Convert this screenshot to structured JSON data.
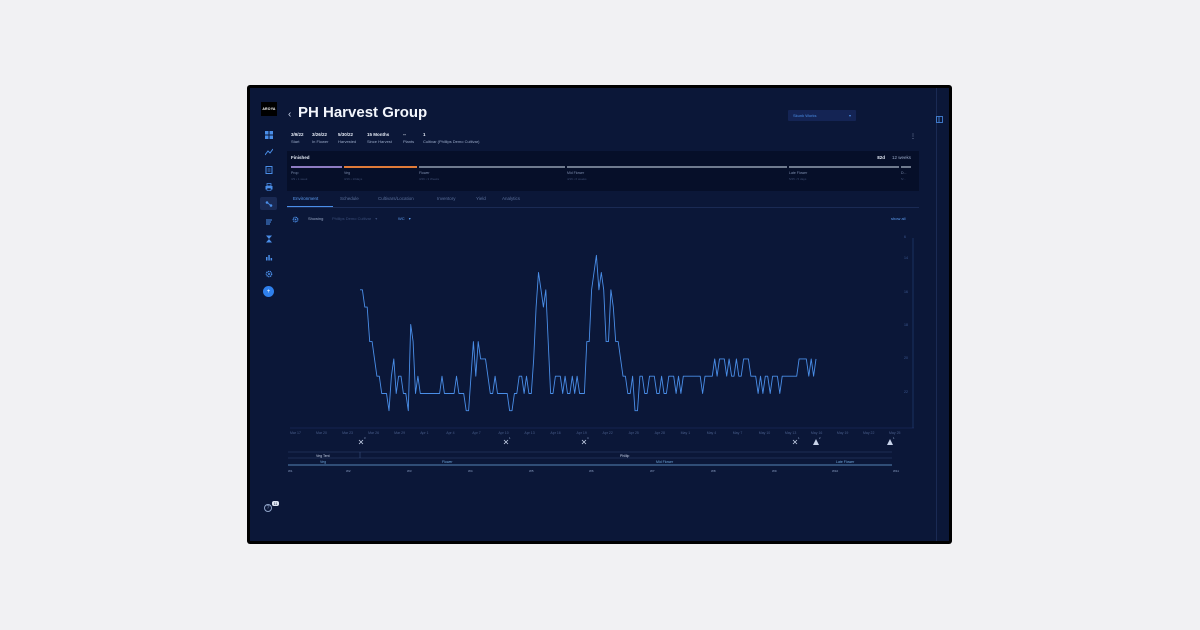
{
  "app": {
    "logo_text": "AROYA"
  },
  "sidebar": {
    "items": [
      {
        "icon": "dashboard-icon"
      },
      {
        "icon": "trend-icon"
      },
      {
        "icon": "clipboard-icon"
      },
      {
        "icon": "printer-icon"
      },
      {
        "icon": "harvest-groups-icon",
        "active": true
      },
      {
        "icon": "layers-icon"
      },
      {
        "icon": "hourglass-icon"
      },
      {
        "icon": "analytics-icon"
      },
      {
        "icon": "gear-icon"
      }
    ],
    "fab_label": "+",
    "help_label": "?",
    "help_badge": "11"
  },
  "header": {
    "back_label": "‹",
    "title": "PH Harvest Group",
    "dropdown_label": "Skunk Works",
    "dropdown_caret": "▾",
    "kebab": "⋮"
  },
  "meta": [
    {
      "value": "3/9/22",
      "label": "Start"
    },
    {
      "value": "3/26/22",
      "label": "In Flower"
    },
    {
      "value": "5/30/22",
      "label": "Harvested"
    },
    {
      "value": "15 Months",
      "label": "Since Harvest"
    },
    {
      "value": "--",
      "label": "Plants"
    },
    {
      "value": "1",
      "label": "Cultivar (Phillips Demo Cultivar)"
    }
  ],
  "stage": {
    "title": "Finished",
    "days": "82d",
    "weeks": "12 weeks",
    "segments": [
      {
        "label": "Prop",
        "sub": "3/9 • 1 week",
        "color": "#8e7cc3"
      },
      {
        "label": "Veg",
        "sub": "3/16 • 10days",
        "color": "#e07b39"
      },
      {
        "label": "Flower",
        "sub": "3/26 • 3 Weeks",
        "color": "#6f7a8e"
      },
      {
        "label": "Mid Flower",
        "sub": "4/16 • 6 weeks",
        "color": "#6f7a8e"
      },
      {
        "label": "Late Flower",
        "sub": "5/25 • 5 days",
        "color": "#6f7a8e"
      },
      {
        "label": "D...",
        "sub": "5/...",
        "color": "#6f7a8e"
      }
    ]
  },
  "tabs": [
    {
      "label": "Environment",
      "active": true
    },
    {
      "label": "Schedule"
    },
    {
      "label": "Cultivars/Location"
    },
    {
      "label": "Inventory"
    },
    {
      "label": "Yield"
    },
    {
      "label": "Analytics"
    }
  ],
  "controls": {
    "showing_label": "Showing",
    "showing_value": "Phillips Demo Cultivar",
    "showing_caret": "▾",
    "param_label": "WC",
    "param_caret": "▾",
    "show_all": "show all"
  },
  "chart_data": {
    "type": "line",
    "x_ticks": [
      "Mar 17",
      "Mar 20",
      "Mar 23",
      "Mar 26",
      "Mar 29",
      "Apr 1",
      "Apr 4",
      "Apr 7",
      "Apr 10",
      "Apr 13",
      "Apr 16",
      "Apr 19",
      "Apr 22",
      "Apr 25",
      "Apr 28",
      "May 1",
      "May 4",
      "May 7",
      "May 10",
      "May 13",
      "May 16",
      "May 19",
      "May 22",
      "May 25"
    ],
    "y_ticks": [
      "6",
      "14",
      "16",
      "18",
      "20",
      "22"
    ],
    "series": [
      {
        "values": [
          24,
          24,
          22,
          22,
          18,
          18,
          16,
          14,
          14,
          12,
          12,
          12,
          10,
          14,
          16,
          12,
          14,
          14,
          12,
          12,
          10,
          20,
          18,
          12,
          14,
          12,
          12,
          12,
          12,
          12,
          12,
          12,
          12,
          12,
          14,
          12,
          12,
          12,
          12,
          12,
          14,
          12,
          12,
          12,
          10,
          10,
          14,
          18,
          14,
          18,
          16,
          16,
          16,
          14,
          12,
          12,
          14,
          12,
          12,
          12,
          12,
          12,
          10,
          10,
          12,
          12,
          14,
          14,
          12,
          14,
          12,
          12,
          16,
          22,
          26,
          24,
          22,
          24,
          18,
          12,
          12,
          14,
          14,
          14,
          12,
          14,
          12,
          12,
          14,
          12,
          14,
          12,
          12,
          12,
          18,
          18,
          24,
          26,
          28,
          24,
          26,
          24,
          18,
          18,
          24,
          22,
          18,
          18,
          16,
          14,
          14,
          12,
          12,
          14,
          10,
          10,
          14,
          14,
          12,
          12,
          14,
          14,
          14,
          12,
          12,
          14,
          12,
          12,
          14,
          14,
          14,
          12,
          14,
          12,
          14,
          14,
          14,
          14,
          14,
          14,
          14,
          14,
          12,
          14,
          14,
          14,
          14,
          16,
          14,
          16,
          16,
          16,
          14,
          16,
          14,
          14,
          16,
          14,
          14,
          16,
          16,
          16,
          14,
          14,
          14,
          12,
          14,
          12,
          14,
          14,
          12,
          14,
          14,
          14,
          12,
          14,
          14,
          14,
          14,
          14,
          14,
          14,
          16,
          16,
          16,
          16,
          14,
          16,
          14,
          16
        ]
      }
    ],
    "event_markers": [
      {
        "label": "3"
      },
      {
        "label": "1"
      },
      {
        "label": "4"
      },
      {
        "label": "1"
      },
      {
        "label": "2"
      },
      {
        "label": "1"
      },
      {
        "label": "2"
      }
    ],
    "row_labels": {
      "location_left": "Veg Tent",
      "location_right": "Phillip",
      "stages": [
        "Veg",
        "Flower",
        "Mid Flower",
        "Late Flower"
      ],
      "weeks": [
        "W1",
        "W2",
        "W3",
        "W4",
        "W5",
        "W6",
        "W7",
        "W8",
        "W9",
        "W10",
        "W11"
      ]
    }
  }
}
